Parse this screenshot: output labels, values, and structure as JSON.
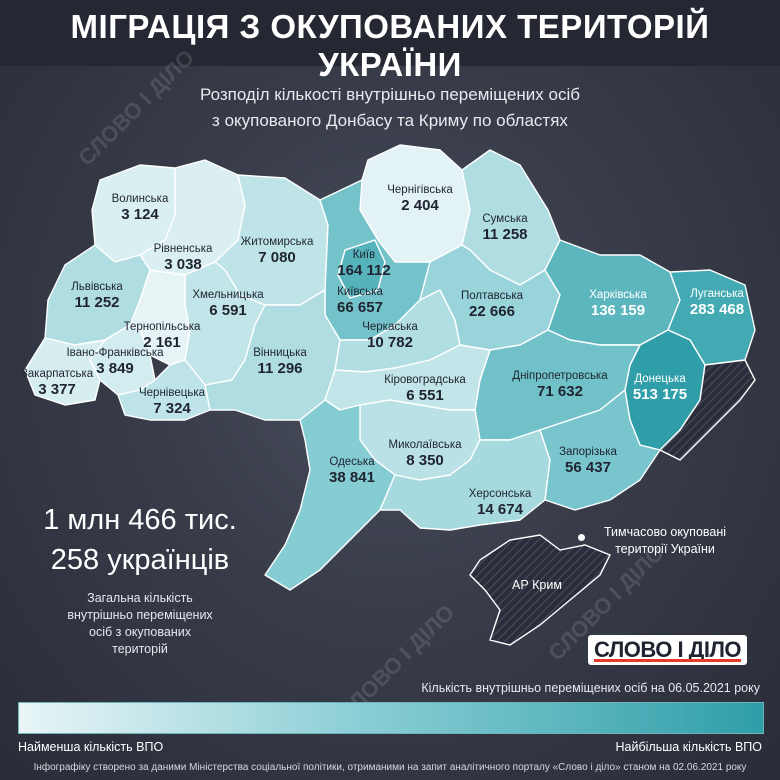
{
  "title": "МІГРАЦІЯ З ОКУПОВАНИХ ТЕРИТОРІЙ УКРАЇНИ",
  "subtitle": [
    "Розподіл кількості внутрішньо переміщених осіб",
    "з окупованого Донбасу та Криму по областях"
  ],
  "watermark": "СЛОВО І ДІЛО",
  "regions": [
    {
      "name": "Волинська",
      "value": "3 124",
      "count": 3124
    },
    {
      "name": "Рівненська",
      "value": "3 038",
      "count": 3038
    },
    {
      "name": "Житомирська",
      "value": "7 080",
      "count": 7080
    },
    {
      "name": "Чернігівська",
      "value": "2 404",
      "count": 2404
    },
    {
      "name": "Сумська",
      "value": "11 258",
      "count": 11258
    },
    {
      "name": "Київ",
      "value": "164 112",
      "count": 164112
    },
    {
      "name": "Київська",
      "value": "66 657",
      "count": 66657
    },
    {
      "name": "Львівська",
      "value": "11 252",
      "count": 11252
    },
    {
      "name": "Хмельницька",
      "value": "6 591",
      "count": 6591
    },
    {
      "name": "Тернопільська",
      "value": "2 161",
      "count": 2161
    },
    {
      "name": "Івано-Франківська",
      "value": "3 849",
      "count": 3849
    },
    {
      "name": "Закарпатська",
      "value": "3 377",
      "count": 3377
    },
    {
      "name": "Чернівецька",
      "value": "7 324",
      "count": 7324
    },
    {
      "name": "Вінницька",
      "value": "11 296",
      "count": 11296
    },
    {
      "name": "Черкаська",
      "value": "10 782",
      "count": 10782
    },
    {
      "name": "Полтавська",
      "value": "22 666",
      "count": 22666
    },
    {
      "name": "Харківська",
      "value": "136 159",
      "count": 136159
    },
    {
      "name": "Луганська",
      "value": "283 468",
      "count": 283468
    },
    {
      "name": "Донецька",
      "value": "513 175",
      "count": 513175
    },
    {
      "name": "Дніпропетровська",
      "value": "71 632",
      "count": 71632
    },
    {
      "name": "Кіровоградська",
      "value": "6 551",
      "count": 6551
    },
    {
      "name": "Миколаївська",
      "value": "8 350",
      "count": 8350
    },
    {
      "name": "Одеська",
      "value": "38 841",
      "count": 38841
    },
    {
      "name": "Херсонська",
      "value": "14 674",
      "count": 14674
    },
    {
      "name": "Запорізька",
      "value": "56 437",
      "count": 56437
    }
  ],
  "crimea_label": "АР Крим",
  "occupied_label": [
    "Тимчасово окуповані",
    "території України"
  ],
  "total": {
    "line1": "1 млн 466 тис.",
    "line2": "258 українців",
    "description": [
      "Загальна кількість",
      "внутрішньо переміщених",
      "осіб з окупованих",
      "територій"
    ]
  },
  "logo": "СЛОВО І ДІЛО",
  "legend": {
    "title": "Кількість внутрішньо переміщених осіб на 06.05.2021 року",
    "min_label": "Найменша кількість ВПО",
    "max_label": "Найбільша кількість ВПО"
  },
  "footer": "Інфографіку створено за даними Міністерства соціальної політики, отриманими на запит аналітичного порталу «Слово і діло» станом на 02.06.2021 року",
  "colors": {
    "background": "#383c49",
    "title_bar": "#252833",
    "low": "#e9f5f7",
    "mid": "#8ccfd6",
    "high": "#2f9ea8",
    "occupied": "#2b2e3a",
    "logo_accent": "#e63a2a"
  }
}
